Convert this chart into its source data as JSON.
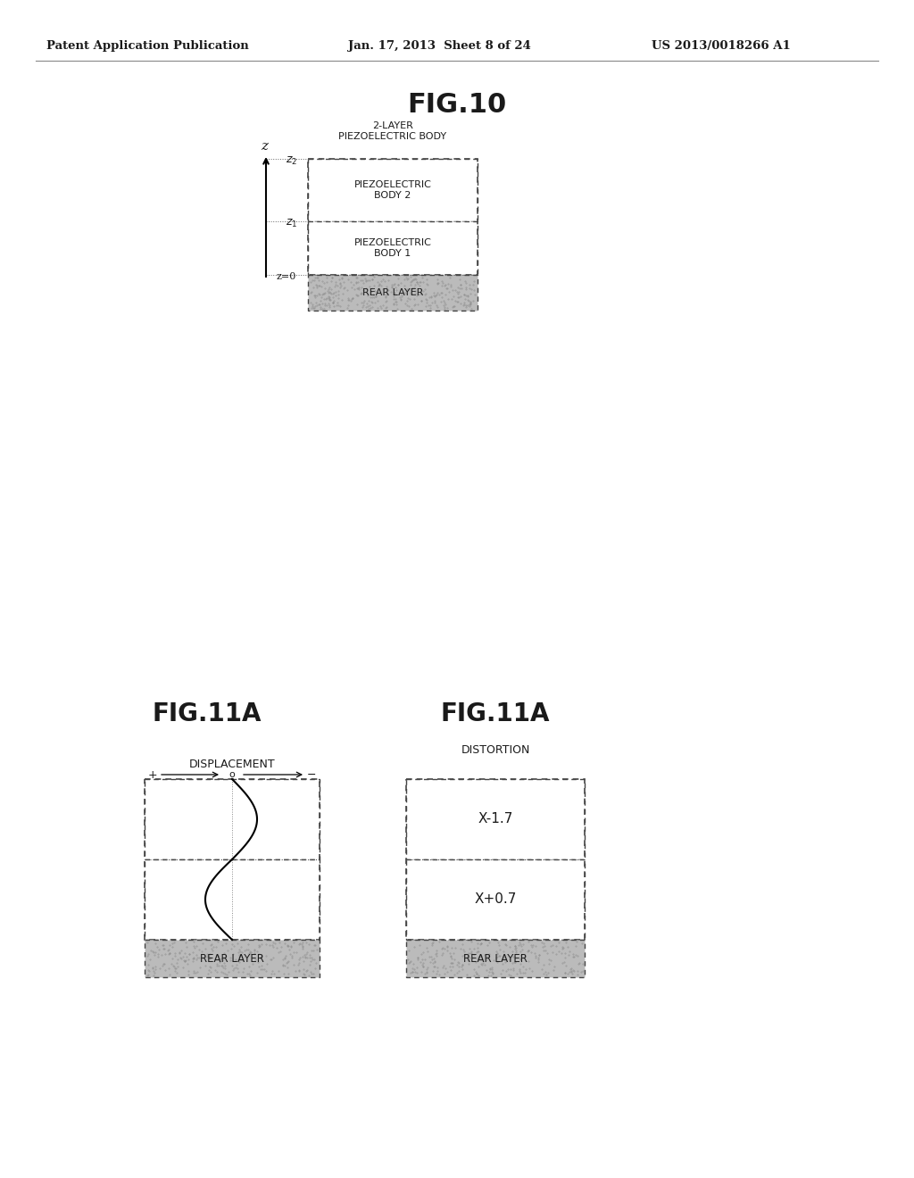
{
  "background_color": "#ffffff",
  "header_left": "Patent Application Publication",
  "header_mid": "Jan. 17, 2013  Sheet 8 of 24",
  "header_right": "US 2013/0018266 A1",
  "fig10_title": "FIG.10",
  "fig11a_left_title": "FIG.11A",
  "fig11a_right_title": "FIG.11A",
  "two_layer_label": "2-LAYER\nPIEZOELECTRIC BODY",
  "piezo2_label": "PIEZOELECTRIC\nBODY 2",
  "piezo1_label": "PIEZOELECTRIC\nBODY 1",
  "rear_layer_label": "REAR LAYER",
  "displacement_label": "DISPLACEMENT",
  "distortion_label": "DISTORTION",
  "x_minus_17": "X-1.7",
  "x_plus_07": "X+0.7",
  "text_color": "#1a1a1a",
  "box_edge_color": "#444444",
  "rear_fill": "#bbbbbb",
  "header_font_size": 9.5,
  "fig10_title_font_size": 22,
  "fig11_title_font_size": 20,
  "small_font_size": 8,
  "medium_font_size": 9,
  "label_font_size": 10
}
